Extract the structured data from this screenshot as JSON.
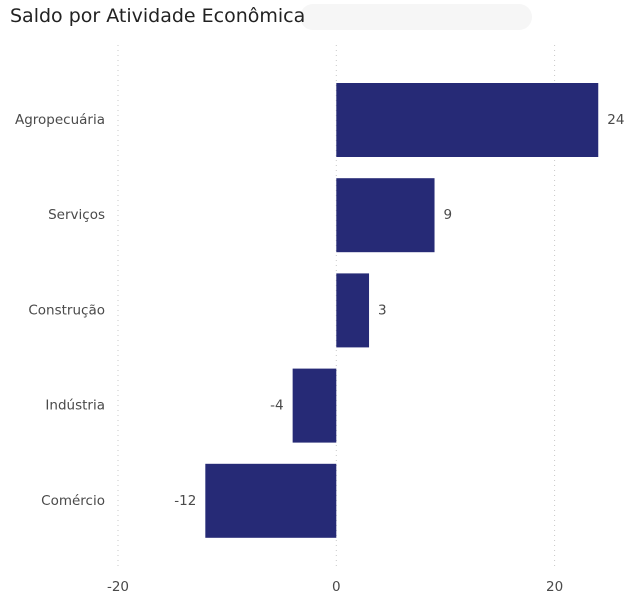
{
  "chart_data": {
    "type": "bar",
    "orientation": "horizontal",
    "title": "Saldo por Atividade Econômica",
    "categories": [
      "Agropecuária",
      "Serviços",
      "Construção",
      "Indústria",
      "Comércio"
    ],
    "values": [
      24,
      9,
      3,
      -4,
      -12
    ],
    "xlim": [
      -20,
      27
    ],
    "xticks": [
      -20,
      0,
      20
    ],
    "grid": true,
    "legend": "none",
    "bar_color": "#262A76"
  }
}
